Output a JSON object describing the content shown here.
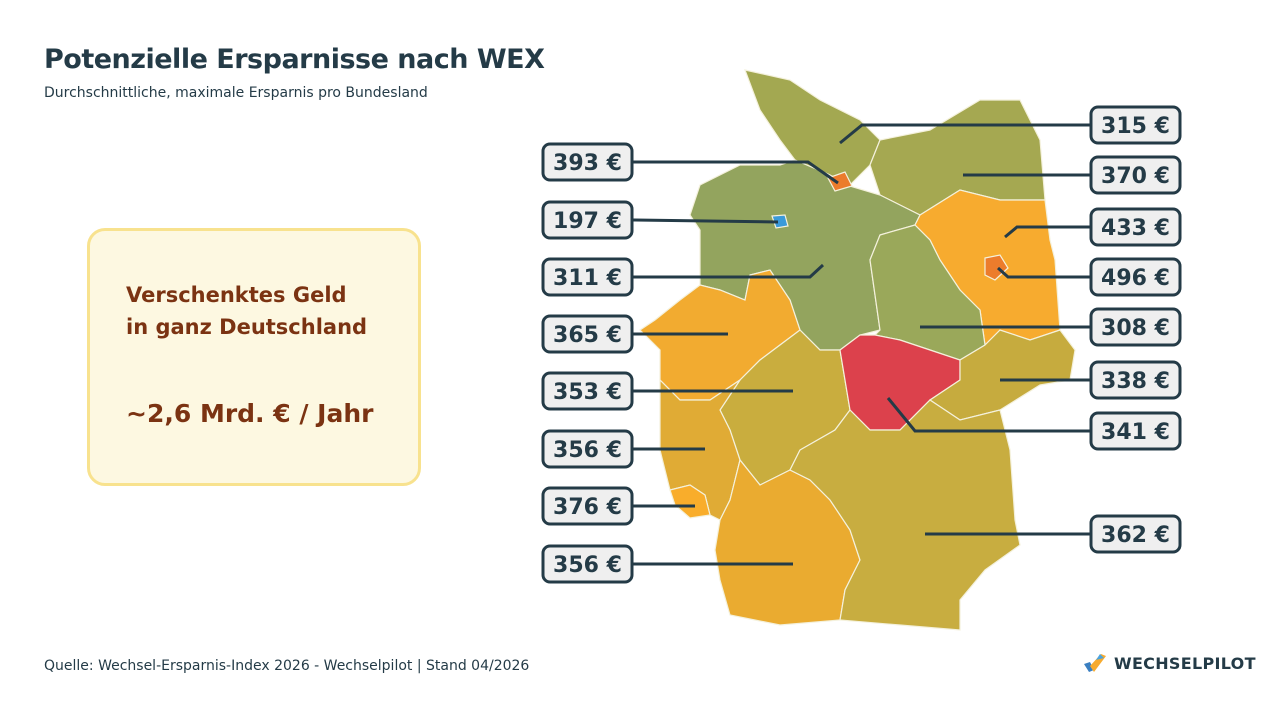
{
  "header": {
    "title": "Potenzielle Ersparnisse nach WEX",
    "subtitle": "Durchschnittliche, maximale Ersparnis pro Bundesland"
  },
  "highlight": {
    "heading_line1": "Verschenktes Geld",
    "heading_line2": "in ganz Deutschland",
    "value": "~2,6 Mrd. € / Jahr"
  },
  "map_labels": {
    "left": [
      "393 €",
      "197 €",
      "311 €",
      "365 €",
      "353 €",
      "356 €",
      "376 €",
      "356 €"
    ],
    "right": [
      "315 €",
      "370 €",
      "433 €",
      "496 €",
      "308 €",
      "338 €",
      "341 €",
      "362 €"
    ]
  },
  "colors": {
    "text": "#243b47",
    "accent_brown": "#7b3312",
    "box_bg": "#fdf8e1",
    "box_border": "#f8e28e",
    "lowest": "#3a9ad9",
    "highest": "#ec7c2c"
  },
  "footer": {
    "source": "Quelle: Wechsel-Ersparnis-Index 2026 - Wechselpilot | Stand  04/2026"
  },
  "brand": {
    "name": "WECHSELPILOT",
    "icon": "wechselpilot-logo-icon"
  }
}
